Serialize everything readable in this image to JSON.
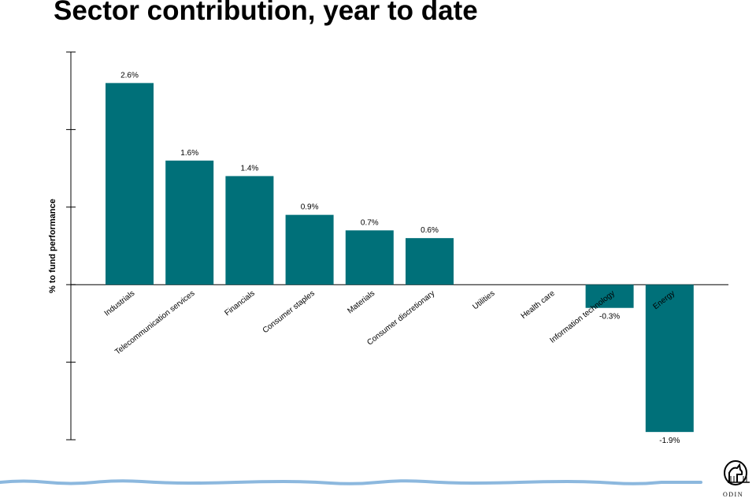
{
  "chart_data": {
    "type": "bar",
    "title": "Sector contribution, year to date",
    "ylabel": "% to fund performance",
    "categories": [
      "Industrials",
      "Telecommunication services",
      "Financials",
      "Consumer staples",
      "Materials",
      "Consumer discretionary",
      "Utilities",
      "Health care",
      "Information technology",
      "Energy"
    ],
    "values": [
      2.6,
      1.6,
      1.4,
      0.9,
      0.7,
      0.6,
      0,
      0,
      -0.3,
      -1.9
    ],
    "labels": [
      "2.6%",
      "1.6%",
      "1.4%",
      "0.9%",
      "0.7%",
      "0.6%",
      "",
      "",
      "-0.3%",
      "-1.9%"
    ],
    "ylim": [
      -2.0,
      3.0
    ],
    "grid": false,
    "bar_color": "#007079"
  },
  "logo": {
    "text": "ODIN"
  },
  "colors": {
    "footer_line": "#8cb8de"
  }
}
